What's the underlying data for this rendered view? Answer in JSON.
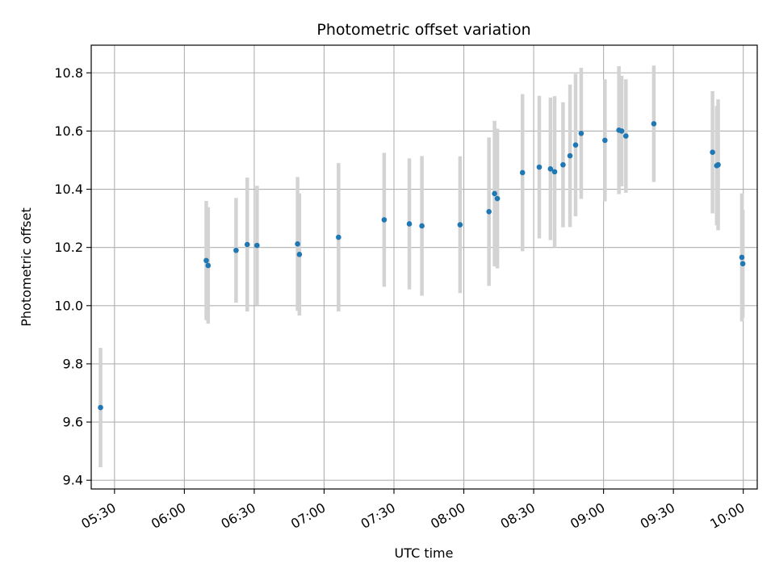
{
  "chart_data": {
    "type": "scatter",
    "title": "Photometric offset variation",
    "xlabel": "UTC time",
    "ylabel": "Photometric offset",
    "grid": true,
    "x_unit": "UTC time (HH:MM)",
    "xlim": [
      "05:20",
      "10:06"
    ],
    "ylim": [
      9.37,
      10.895
    ],
    "x_ticks": [
      "05:30",
      "06:00",
      "06:30",
      "07:00",
      "07:30",
      "08:00",
      "08:30",
      "09:00",
      "09:30",
      "10:00"
    ],
    "y_ticks": [
      "9.4",
      "9.6",
      "9.8",
      "10.0",
      "10.2",
      "10.4",
      "10.6",
      "10.8"
    ],
    "colors": {
      "point": "#1f77b4",
      "errorbar": "#d3d3d3",
      "grid": "#b0b0b0"
    },
    "points": [
      {
        "x": "05:24:00",
        "y": 9.65,
        "err": 0.205
      },
      {
        "x": "06:09:24",
        "y": 10.155,
        "err": 0.205
      },
      {
        "x": "06:10:12",
        "y": 10.138,
        "err": 0.2
      },
      {
        "x": "06:22:12",
        "y": 10.19,
        "err": 0.18
      },
      {
        "x": "06:27:00",
        "y": 10.21,
        "err": 0.23
      },
      {
        "x": "06:31:12",
        "y": 10.207,
        "err": 0.205
      },
      {
        "x": "06:48:36",
        "y": 10.212,
        "err": 0.23
      },
      {
        "x": "06:49:24",
        "y": 10.176,
        "err": 0.21
      },
      {
        "x": "07:06:12",
        "y": 10.235,
        "err": 0.255
      },
      {
        "x": "07:25:48",
        "y": 10.295,
        "err": 0.23
      },
      {
        "x": "07:36:36",
        "y": 10.281,
        "err": 0.225
      },
      {
        "x": "07:42:00",
        "y": 10.274,
        "err": 0.24
      },
      {
        "x": "07:58:24",
        "y": 10.278,
        "err": 0.235
      },
      {
        "x": "08:10:48",
        "y": 10.323,
        "err": 0.255
      },
      {
        "x": "08:13:12",
        "y": 10.385,
        "err": 0.25
      },
      {
        "x": "08:14:24",
        "y": 10.368,
        "err": 0.24
      },
      {
        "x": "08:25:12",
        "y": 10.457,
        "err": 0.27
      },
      {
        "x": "08:32:24",
        "y": 10.476,
        "err": 0.245
      },
      {
        "x": "08:37:12",
        "y": 10.47,
        "err": 0.245
      },
      {
        "x": "08:39:00",
        "y": 10.46,
        "err": 0.26
      },
      {
        "x": "08:42:36",
        "y": 10.484,
        "err": 0.215
      },
      {
        "x": "08:45:36",
        "y": 10.515,
        "err": 0.245
      },
      {
        "x": "08:48:00",
        "y": 10.552,
        "err": 0.245
      },
      {
        "x": "08:50:24",
        "y": 10.592,
        "err": 0.225
      },
      {
        "x": "09:00:36",
        "y": 10.568,
        "err": 0.21
      },
      {
        "x": "09:06:36",
        "y": 10.603,
        "err": 0.22
      },
      {
        "x": "09:07:48",
        "y": 10.6,
        "err": 0.19
      },
      {
        "x": "09:09:36",
        "y": 10.583,
        "err": 0.195
      },
      {
        "x": "09:21:36",
        "y": 10.625,
        "err": 0.2
      },
      {
        "x": "09:46:48",
        "y": 10.527,
        "err": 0.21
      },
      {
        "x": "09:48:36",
        "y": 10.481,
        "err": 0.205
      },
      {
        "x": "09:49:12",
        "y": 10.484,
        "err": 0.225
      },
      {
        "x": "09:59:24",
        "y": 10.166,
        "err": 0.22
      },
      {
        "x": "09:59:48",
        "y": 10.144,
        "err": 0.185
      }
    ]
  }
}
